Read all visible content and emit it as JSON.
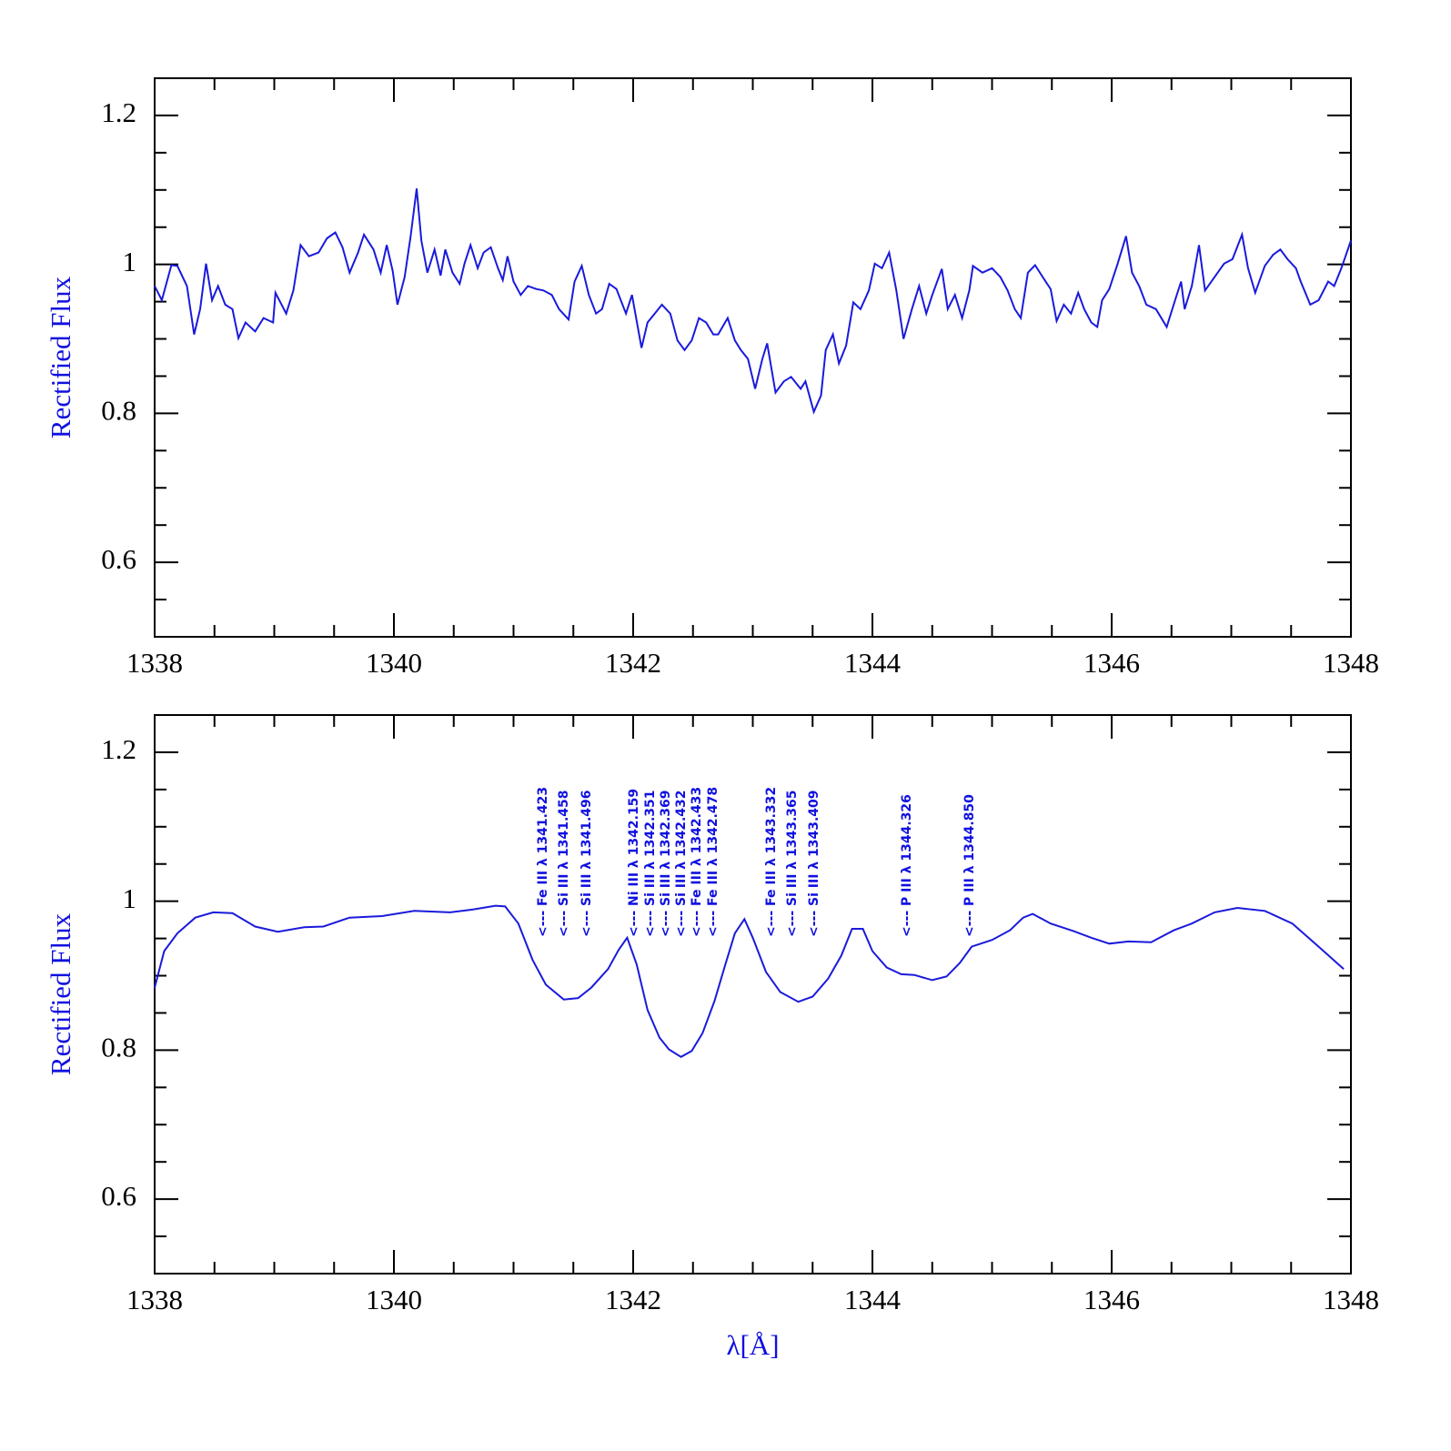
{
  "chart_data": [
    {
      "type": "line",
      "ylabel": "Rectified Flux",
      "color": "#1a1adc",
      "xlim": [
        1338,
        1348
      ],
      "ylim": [
        0.5,
        1.25
      ],
      "xticks": [
        1338,
        1340,
        1342,
        1344,
        1346,
        1348
      ],
      "xminorticks": [
        1338.5,
        1339,
        1339.5,
        1340.5,
        1341,
        1341.5,
        1342.5,
        1343,
        1343.5,
        1344.5,
        1345,
        1345.5,
        1346.5,
        1347,
        1347.5
      ],
      "yticks": [
        0.6,
        0.8,
        1,
        1.2
      ],
      "yminorticks": [
        0.55,
        0.65,
        0.7,
        0.75,
        0.85,
        0.9,
        0.95,
        1.05,
        1.1,
        1.15
      ],
      "x": [
        1338.0,
        1338.06,
        1338.14,
        1338.19,
        1338.27,
        1338.33,
        1338.38,
        1338.43,
        1338.48,
        1338.53,
        1338.59,
        1338.65,
        1338.7,
        1338.76,
        1338.84,
        1338.91,
        1338.99,
        1339.01,
        1339.1,
        1339.16,
        1339.22,
        1339.29,
        1339.37,
        1339.44,
        1339.51,
        1339.57,
        1339.63,
        1339.7,
        1339.75,
        1339.83,
        1339.89,
        1339.94,
        1339.99,
        1340.03,
        1340.09,
        1340.14,
        1340.19,
        1340.23,
        1340.28,
        1340.34,
        1340.39,
        1340.43,
        1340.49,
        1340.55,
        1340.59,
        1340.64,
        1340.7,
        1340.75,
        1340.81,
        1340.87,
        1340.91,
        1340.95,
        1341.0,
        1341.06,
        1341.12,
        1341.19,
        1341.25,
        1341.32,
        1341.38,
        1341.46,
        1341.51,
        1341.57,
        1341.63,
        1341.69,
        1341.74,
        1341.8,
        1341.86,
        1341.94,
        1341.99,
        1342.07,
        1342.12,
        1342.18,
        1342.24,
        1342.31,
        1342.37,
        1342.43,
        1342.49,
        1342.55,
        1342.61,
        1342.67,
        1342.71,
        1342.79,
        1342.85,
        1342.9,
        1342.96,
        1343.02,
        1343.08,
        1343.12,
        1343.19,
        1343.26,
        1343.32,
        1343.4,
        1343.44,
        1343.51,
        1343.57,
        1343.61,
        1343.67,
        1343.72,
        1343.78,
        1343.84,
        1343.9,
        1343.97,
        1344.02,
        1344.08,
        1344.14,
        1344.2,
        1344.26,
        1344.33,
        1344.39,
        1344.45,
        1344.5,
        1344.58,
        1344.63,
        1344.69,
        1344.75,
        1344.81,
        1344.84,
        1344.92,
        1345.0,
        1345.07,
        1345.13,
        1345.19,
        1345.24,
        1345.3,
        1345.36,
        1345.44,
        1345.49,
        1345.54,
        1345.6,
        1345.66,
        1345.72,
        1345.77,
        1345.83,
        1345.88,
        1345.92,
        1345.98,
        1346.05,
        1346.12,
        1346.17,
        1346.23,
        1346.29,
        1346.37,
        1346.46,
        1346.53,
        1346.58,
        1346.61,
        1346.67,
        1346.73,
        1346.78,
        1346.86,
        1346.94,
        1347.01,
        1347.09,
        1347.14,
        1347.2,
        1347.28,
        1347.35,
        1347.41,
        1347.47,
        1347.54,
        1347.58,
        1347.66,
        1347.73,
        1347.81,
        1347.86,
        1347.92,
        1348.0
      ],
      "values": [
        0.971,
        0.952,
        0.999,
        0.998,
        0.971,
        0.906,
        0.94,
        1.001,
        0.952,
        0.971,
        0.946,
        0.94,
        0.901,
        0.922,
        0.91,
        0.928,
        0.922,
        0.962,
        0.934,
        0.965,
        1.026,
        1.011,
        1.016,
        1.035,
        1.043,
        1.023,
        0.989,
        1.016,
        1.04,
        1.02,
        0.989,
        1.026,
        0.991,
        0.946,
        0.983,
        1.038,
        1.102,
        1.032,
        0.989,
        1.02,
        0.985,
        1.02,
        0.989,
        0.974,
        1.001,
        1.026,
        0.995,
        1.016,
        1.023,
        0.995,
        0.979,
        1.011,
        0.977,
        0.959,
        0.971,
        0.967,
        0.965,
        0.959,
        0.94,
        0.926,
        0.977,
        0.998,
        0.959,
        0.934,
        0.94,
        0.974,
        0.967,
        0.934,
        0.959,
        0.888,
        0.922,
        0.934,
        0.946,
        0.934,
        0.898,
        0.885,
        0.898,
        0.928,
        0.922,
        0.906,
        0.906,
        0.928,
        0.898,
        0.885,
        0.873,
        0.833,
        0.873,
        0.894,
        0.828,
        0.843,
        0.849,
        0.833,
        0.843,
        0.802,
        0.824,
        0.885,
        0.906,
        0.867,
        0.891,
        0.949,
        0.94,
        0.965,
        1.001,
        0.995,
        1.016,
        0.965,
        0.9,
        0.94,
        0.971,
        0.934,
        0.959,
        0.994,
        0.94,
        0.959,
        0.928,
        0.965,
        0.998,
        0.989,
        0.995,
        0.983,
        0.965,
        0.94,
        0.928,
        0.989,
        0.999,
        0.979,
        0.967,
        0.924,
        0.946,
        0.934,
        0.962,
        0.94,
        0.922,
        0.916,
        0.952,
        0.967,
        1.001,
        1.038,
        0.989,
        0.971,
        0.946,
        0.94,
        0.916,
        0.952,
        0.977,
        0.94,
        0.971,
        1.026,
        0.965,
        0.983,
        1.001,
        1.007,
        1.04,
        0.995,
        0.962,
        0.998,
        1.013,
        1.02,
        1.007,
        0.995,
        0.977,
        0.946,
        0.952,
        0.977,
        0.971,
        0.995,
        1.032
      ]
    },
    {
      "type": "line",
      "ylabel": "Rectified Flux",
      "xlabel": "λ[Å]",
      "color": "#1a1adc",
      "xlim": [
        1338,
        1348
      ],
      "ylim": [
        0.5,
        1.25
      ],
      "xticks": [
        1338,
        1340,
        1342,
        1344,
        1346,
        1348
      ],
      "xminorticks": [
        1338.5,
        1339,
        1339.5,
        1340.5,
        1341,
        1341.5,
        1342.5,
        1343,
        1343.5,
        1344.5,
        1345,
        1345.5,
        1346.5,
        1347,
        1347.5
      ],
      "yticks": [
        0.6,
        0.8,
        1,
        1.2
      ],
      "yminorticks": [
        0.55,
        0.65,
        0.7,
        0.75,
        0.85,
        0.9,
        0.95,
        1.05,
        1.1,
        1.15
      ],
      "x": [
        1338.0,
        1338.08,
        1338.19,
        1338.34,
        1338.49,
        1338.65,
        1338.84,
        1339.03,
        1339.25,
        1339.41,
        1339.63,
        1339.9,
        1340.17,
        1340.47,
        1340.66,
        1340.85,
        1340.93,
        1341.04,
        1341.16,
        1341.27,
        1341.42,
        1341.54,
        1341.65,
        1341.79,
        1341.88,
        1341.95,
        1342.03,
        1342.12,
        1342.22,
        1342.3,
        1342.4,
        1342.49,
        1342.58,
        1342.68,
        1342.77,
        1342.85,
        1342.93,
        1343.0,
        1343.11,
        1343.23,
        1343.38,
        1343.5,
        1343.63,
        1343.74,
        1343.83,
        1343.92,
        1344.0,
        1344.12,
        1344.24,
        1344.35,
        1344.5,
        1344.62,
        1344.73,
        1344.83,
        1345.0,
        1345.15,
        1345.26,
        1345.34,
        1345.49,
        1345.68,
        1345.83,
        1345.98,
        1346.14,
        1346.33,
        1346.52,
        1346.67,
        1346.86,
        1347.05,
        1347.28,
        1347.51,
        1347.73,
        1347.94
      ],
      "values": [
        0.884,
        0.933,
        0.957,
        0.978,
        0.985,
        0.984,
        0.966,
        0.959,
        0.965,
        0.966,
        0.978,
        0.98,
        0.987,
        0.985,
        0.989,
        0.994,
        0.993,
        0.97,
        0.921,
        0.888,
        0.868,
        0.87,
        0.884,
        0.909,
        0.935,
        0.951,
        0.915,
        0.854,
        0.817,
        0.801,
        0.791,
        0.799,
        0.823,
        0.866,
        0.915,
        0.957,
        0.976,
        0.951,
        0.905,
        0.878,
        0.865,
        0.872,
        0.896,
        0.927,
        0.963,
        0.963,
        0.933,
        0.911,
        0.902,
        0.901,
        0.894,
        0.899,
        0.917,
        0.939,
        0.948,
        0.961,
        0.978,
        0.983,
        0.97,
        0.96,
        0.951,
        0.943,
        0.946,
        0.945,
        0.961,
        0.97,
        0.985,
        0.991,
        0.987,
        0.97,
        0.939,
        0.909
      ],
      "annotations": [
        "<--- Fe III λ 1341.423",
        "<--- Si III λ 1341.458",
        "<--- Si III λ 1341.496",
        "<--- Ni III λ 1342.159",
        "<--- Si III λ 1342.351",
        "<--- Si III λ 1342.369",
        "<--- Si III λ 1342.432",
        "<--- Fe III λ 1342.433",
        "<--- Fe III λ 1342.478",
        "<--- Fe III λ 1343.332",
        "<--- Si III λ 1343.365",
        "<--- Si III λ 1343.409",
        "<--- P III λ 1344.326",
        "<--- P III λ 1344.850"
      ]
    }
  ]
}
